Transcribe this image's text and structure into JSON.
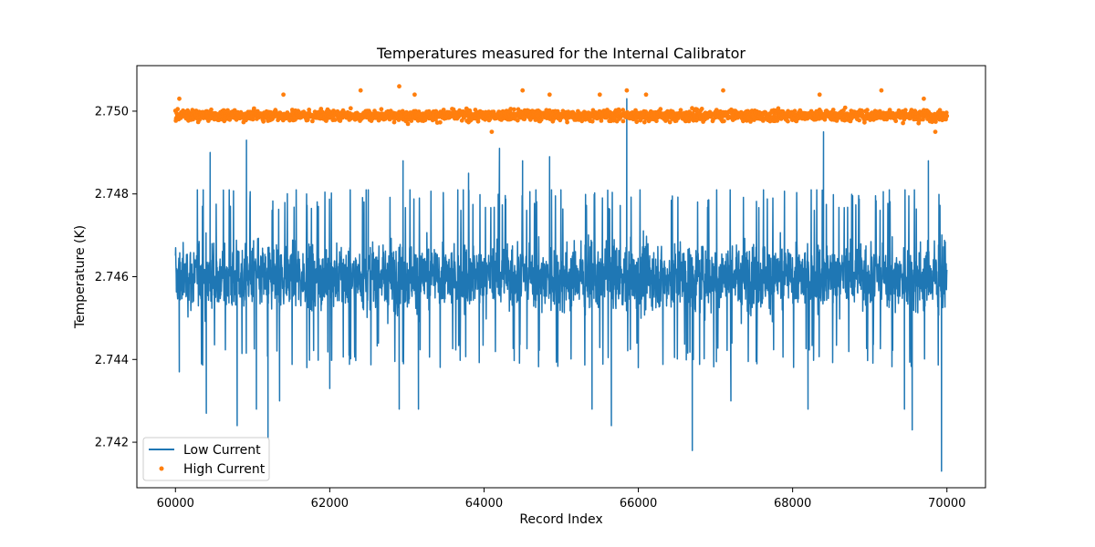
{
  "chart_data": {
    "type": "line",
    "title": "Temperatures measured for the Internal Calibrator",
    "xlabel": "Record Index",
    "ylabel": "Temperature (K)",
    "xlim": [
      59500,
      70500
    ],
    "ylim": [
      2.7409,
      2.7511
    ],
    "xticks": [
      60000,
      62000,
      64000,
      66000,
      68000,
      70000
    ],
    "yticks": [
      2.742,
      2.744,
      2.746,
      2.748,
      2.75
    ],
    "ytick_labels": [
      "2.742",
      "2.744",
      "2.746",
      "2.748",
      "2.750"
    ],
    "x_range": [
      60000,
      70000
    ],
    "grid": false,
    "legend_position": "lower-left",
    "series": [
      {
        "name": "Low Current",
        "style": "line",
        "color": "#1f77b4",
        "baseline": 2.746,
        "typical_band": [
          2.7447,
          2.7475
        ],
        "spikes": [
          {
            "x": 60050,
            "y": 2.7437
          },
          {
            "x": 60400,
            "y": 2.7427
          },
          {
            "x": 60450,
            "y": 2.749
          },
          {
            "x": 60800,
            "y": 2.7424
          },
          {
            "x": 60920,
            "y": 2.7493
          },
          {
            "x": 61050,
            "y": 2.7428
          },
          {
            "x": 61200,
            "y": 2.7421
          },
          {
            "x": 61350,
            "y": 2.743
          },
          {
            "x": 62000,
            "y": 2.7433
          },
          {
            "x": 62500,
            "y": 2.7481
          },
          {
            "x": 62900,
            "y": 2.7428
          },
          {
            "x": 62950,
            "y": 2.7488
          },
          {
            "x": 63150,
            "y": 2.7428
          },
          {
            "x": 63800,
            "y": 2.7485
          },
          {
            "x": 64200,
            "y": 2.7491
          },
          {
            "x": 64500,
            "y": 2.7488
          },
          {
            "x": 64850,
            "y": 2.7489
          },
          {
            "x": 65400,
            "y": 2.7428
          },
          {
            "x": 65650,
            "y": 2.7424
          },
          {
            "x": 65850,
            "y": 2.7503
          },
          {
            "x": 66700,
            "y": 2.7418
          },
          {
            "x": 67200,
            "y": 2.743
          },
          {
            "x": 68200,
            "y": 2.7428
          },
          {
            "x": 68400,
            "y": 2.7495
          },
          {
            "x": 69450,
            "y": 2.7428
          },
          {
            "x": 69550,
            "y": 2.7423
          },
          {
            "x": 69760,
            "y": 2.7488
          },
          {
            "x": 69930,
            "y": 2.7413
          }
        ]
      },
      {
        "name": "High Current",
        "style": "points",
        "color": "#ff7f0e",
        "baseline": 2.7499,
        "typical_band": [
          2.7496,
          2.7502
        ],
        "outliers": [
          {
            "x": 60050,
            "y": 2.7503
          },
          {
            "x": 61400,
            "y": 2.7504
          },
          {
            "x": 62400,
            "y": 2.7505
          },
          {
            "x": 62900,
            "y": 2.7506
          },
          {
            "x": 63100,
            "y": 2.7504
          },
          {
            "x": 64100,
            "y": 2.7495
          },
          {
            "x": 64500,
            "y": 2.7505
          },
          {
            "x": 64850,
            "y": 2.7504
          },
          {
            "x": 65500,
            "y": 2.7504
          },
          {
            "x": 65850,
            "y": 2.7505
          },
          {
            "x": 66100,
            "y": 2.7504
          },
          {
            "x": 67100,
            "y": 2.7505
          },
          {
            "x": 68350,
            "y": 2.7504
          },
          {
            "x": 69150,
            "y": 2.7505
          },
          {
            "x": 69700,
            "y": 2.7503
          },
          {
            "x": 69850,
            "y": 2.7495
          }
        ]
      }
    ]
  }
}
